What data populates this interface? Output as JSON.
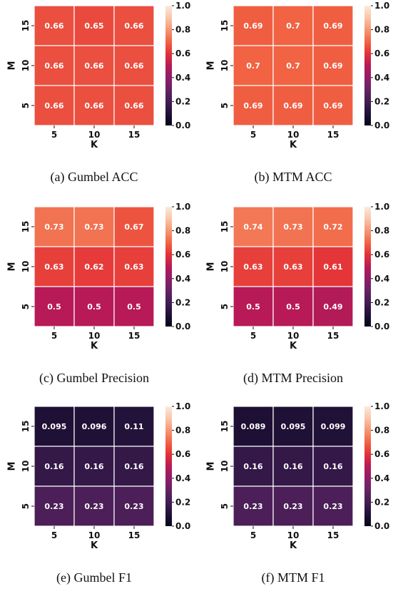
{
  "colormap": "rocket",
  "chart_data": [
    {
      "type": "heatmap",
      "caption": "(a)  Gumbel ACC",
      "xlabel": "K",
      "ylabel": "M",
      "x_categories": [
        "5",
        "10",
        "15"
      ],
      "y_categories": [
        "15",
        "10",
        "5"
      ],
      "values": [
        [
          0.66,
          0.65,
          0.66
        ],
        [
          0.66,
          0.66,
          0.66
        ],
        [
          0.66,
          0.66,
          0.66
        ]
      ],
      "labels": [
        [
          "0.66",
          "0.65",
          "0.66"
        ],
        [
          "0.66",
          "0.66",
          "0.66"
        ],
        [
          "0.66",
          "0.66",
          "0.66"
        ]
      ],
      "colorbar": {
        "range": [
          0.0,
          1.0
        ],
        "ticks": [
          "1.0",
          "0.8",
          "0.6",
          "0.4",
          "0.2",
          "0.0"
        ]
      }
    },
    {
      "type": "heatmap",
      "caption": "(b)  MTM ACC",
      "xlabel": "K",
      "ylabel": "M",
      "x_categories": [
        "5",
        "10",
        "15"
      ],
      "y_categories": [
        "15",
        "10",
        "5"
      ],
      "values": [
        [
          0.69,
          0.7,
          0.69
        ],
        [
          0.7,
          0.7,
          0.69
        ],
        [
          0.69,
          0.69,
          0.69
        ]
      ],
      "labels": [
        [
          "0.69",
          "0.7",
          "0.69"
        ],
        [
          "0.7",
          "0.7",
          "0.69"
        ],
        [
          "0.69",
          "0.69",
          "0.69"
        ]
      ],
      "colorbar": {
        "range": [
          0.0,
          1.0
        ],
        "ticks": [
          "1.0",
          "0.8",
          "0.6",
          "0.4",
          "0.2",
          "0.0"
        ]
      }
    },
    {
      "type": "heatmap",
      "caption": "(c)  Gumbel Precision",
      "xlabel": "K",
      "ylabel": "M",
      "x_categories": [
        "5",
        "10",
        "15"
      ],
      "y_categories": [
        "15",
        "10",
        "5"
      ],
      "values": [
        [
          0.73,
          0.73,
          0.67
        ],
        [
          0.63,
          0.62,
          0.63
        ],
        [
          0.5,
          0.5,
          0.5
        ]
      ],
      "labels": [
        [
          "0.73",
          "0.73",
          "0.67"
        ],
        [
          "0.63",
          "0.62",
          "0.63"
        ],
        [
          "0.5",
          "0.5",
          "0.5"
        ]
      ],
      "colorbar": {
        "range": [
          0.0,
          1.0
        ],
        "ticks": [
          "1.0",
          "0.8",
          "0.6",
          "0.4",
          "0.2",
          "0.0"
        ]
      }
    },
    {
      "type": "heatmap",
      "caption": "(d)  MTM Precision",
      "xlabel": "K",
      "ylabel": "M",
      "x_categories": [
        "5",
        "10",
        "15"
      ],
      "y_categories": [
        "15",
        "10",
        "5"
      ],
      "values": [
        [
          0.74,
          0.73,
          0.72
        ],
        [
          0.63,
          0.63,
          0.61
        ],
        [
          0.5,
          0.5,
          0.49
        ]
      ],
      "labels": [
        [
          "0.74",
          "0.73",
          "0.72"
        ],
        [
          "0.63",
          "0.63",
          "0.61"
        ],
        [
          "0.5",
          "0.5",
          "0.49"
        ]
      ],
      "colorbar": {
        "range": [
          0.0,
          1.0
        ],
        "ticks": [
          "1.0",
          "0.8",
          "0.6",
          "0.4",
          "0.2",
          "0.0"
        ]
      }
    },
    {
      "type": "heatmap",
      "caption": "(e)  Gumbel F1",
      "xlabel": "K",
      "ylabel": "M",
      "x_categories": [
        "5",
        "10",
        "15"
      ],
      "y_categories": [
        "15",
        "10",
        "5"
      ],
      "values": [
        [
          0.095,
          0.096,
          0.11
        ],
        [
          0.16,
          0.16,
          0.16
        ],
        [
          0.23,
          0.23,
          0.23
        ]
      ],
      "labels": [
        [
          "0.095",
          "0.096",
          "0.11"
        ],
        [
          "0.16",
          "0.16",
          "0.16"
        ],
        [
          "0.23",
          "0.23",
          "0.23"
        ]
      ],
      "colorbar": {
        "range": [
          0.0,
          1.0
        ],
        "ticks": [
          "1.0",
          "0.8",
          "0.6",
          "0.4",
          "0.2",
          "0.0"
        ]
      }
    },
    {
      "type": "heatmap",
      "caption": "(f)  MTM F1",
      "xlabel": "K",
      "ylabel": "M",
      "x_categories": [
        "5",
        "10",
        "15"
      ],
      "y_categories": [
        "15",
        "10",
        "5"
      ],
      "values": [
        [
          0.089,
          0.095,
          0.099
        ],
        [
          0.16,
          0.16,
          0.16
        ],
        [
          0.23,
          0.23,
          0.23
        ]
      ],
      "labels": [
        [
          "0.089",
          "0.095",
          "0.099"
        ],
        [
          "0.16",
          "0.16",
          "0.16"
        ],
        [
          "0.23",
          "0.23",
          "0.23"
        ]
      ],
      "colorbar": {
        "range": [
          0.0,
          1.0
        ],
        "ticks": [
          "1.0",
          "0.8",
          "0.6",
          "0.4",
          "0.2",
          "0.0"
        ]
      }
    }
  ]
}
